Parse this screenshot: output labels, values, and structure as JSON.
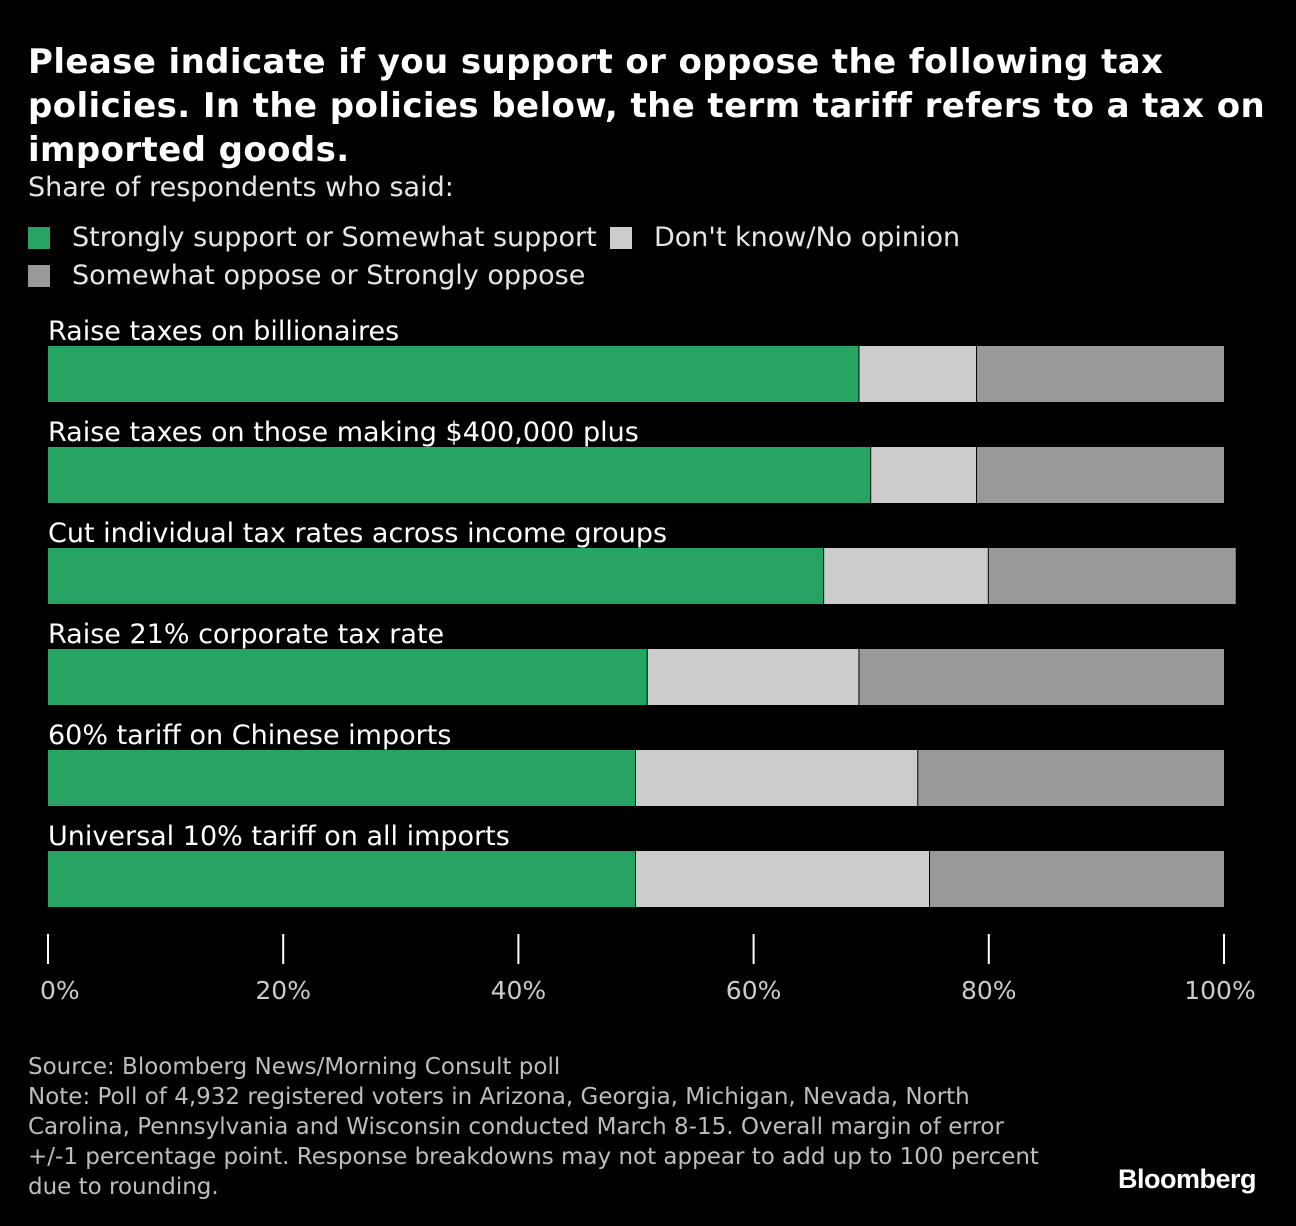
{
  "header": {
    "title": "Please indicate if you support or oppose the following tax policies. In the policies below, the term tariff refers to a tax on imported goods.",
    "subtitle": "Share of respondents who said:"
  },
  "legend": [
    {
      "label": "Strongly support or Somewhat support",
      "color": "#27a464"
    },
    {
      "label": "Don't know/No opinion",
      "color": "#cccccc"
    },
    {
      "label": "Somewhat oppose or Strongly oppose",
      "color": "#999999"
    }
  ],
  "chart_data": {
    "type": "bar",
    "orientation": "horizontal",
    "stacked": true,
    "categories": [
      "Raise taxes on billionaires",
      "Raise taxes on those making $400,000 plus",
      "Cut individual tax rates across income groups",
      "Raise 21% corporate tax rate",
      "60% tariff on Chinese imports",
      "Universal 10% tariff on all imports"
    ],
    "series": [
      {
        "name": "Strongly support or Somewhat support",
        "color": "#27a464",
        "values": [
          69,
          70,
          66,
          51,
          50,
          50
        ]
      },
      {
        "name": "Don't know/No opinion",
        "color": "#cccccc",
        "values": [
          10,
          9,
          14,
          18,
          24,
          25
        ]
      },
      {
        "name": "Somewhat oppose or Strongly oppose",
        "color": "#999999",
        "values": [
          21,
          21,
          21,
          31,
          26,
          25
        ]
      }
    ],
    "xlim": [
      0,
      100
    ],
    "ticks": [
      "0%",
      "20%",
      "40%",
      "60%",
      "80%",
      "100%"
    ],
    "tick_values": [
      0,
      20,
      40,
      60,
      80,
      100
    ],
    "legend_position": "top",
    "grid": false
  },
  "footer": {
    "source": "Source: Bloomberg News/Morning Consult poll",
    "note": "Note: Poll of 4,932 registered voters in Arizona, Georgia, Michigan, Nevada, North Carolina, Pennsylvania and Wisconsin conducted March 8-15. Overall margin of error +/-1 percentage point. Response breakdowns may not appear to add up to 100 percent due to rounding.",
    "brand": "Bloomberg"
  }
}
